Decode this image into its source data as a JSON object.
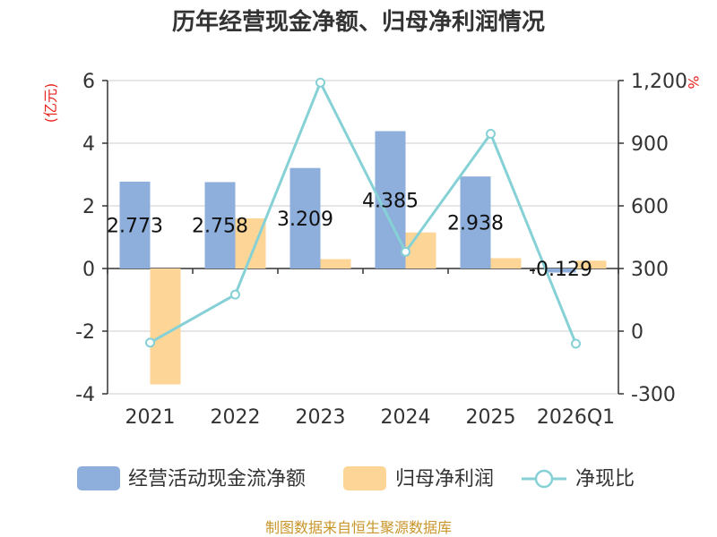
{
  "title": "历年经营现金净额、归母净利润情况",
  "source": "制图数据来自恒生聚源数据库",
  "chart_data": {
    "type": "bar",
    "categories": [
      "2021",
      "2022",
      "2023",
      "2024",
      "2025",
      "2026Q1"
    ],
    "series": [
      {
        "name": "经营活动现金流净额",
        "type": "bar",
        "axis": "left",
        "color": "#8eaedb",
        "values": [
          2.773,
          2.758,
          3.209,
          4.385,
          2.938,
          -0.129
        ],
        "labels": [
          "2.773",
          "2.758",
          "3.209",
          "4.385",
          "2.938",
          "-0.129"
        ]
      },
      {
        "name": "归母净利润",
        "type": "bar",
        "axis": "left",
        "color": "#fdd596",
        "values": [
          -3.7,
          1.6,
          0.3,
          1.15,
          0.33,
          0.25
        ]
      },
      {
        "name": "净现比",
        "type": "line",
        "axis": "right",
        "color": "#86d1d6",
        "values": [
          -55,
          175,
          1190,
          380,
          945,
          -60
        ]
      }
    ],
    "y_left": {
      "unit": "(亿元)",
      "ticks": [
        "6",
        "4",
        "2",
        "0",
        "-2",
        "-4"
      ],
      "min": -4,
      "max": 6
    },
    "y_right": {
      "unit": "%",
      "ticks": [
        "1,200",
        "900",
        "600",
        "300",
        "0",
        "-300"
      ],
      "min": -300,
      "max": 1200
    },
    "grid": true,
    "legend_position": "bottom"
  }
}
